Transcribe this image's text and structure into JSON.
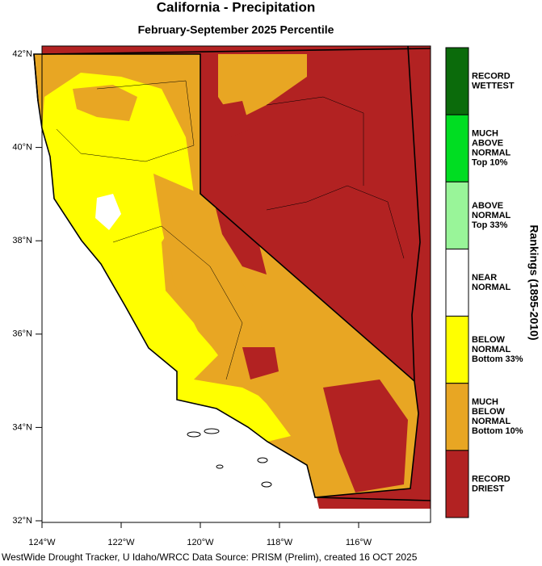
{
  "map": {
    "title": "California - Precipitation",
    "subtitle": "February-September 2025 Percentile",
    "lon_ticks": [
      {
        "value": -124,
        "label": "124°W"
      },
      {
        "value": -122,
        "label": "122°W"
      },
      {
        "value": -120,
        "label": "120°W"
      },
      {
        "value": -118,
        "label": "118°W"
      },
      {
        "value": -116,
        "label": "116°W"
      }
    ],
    "lat_ticks": [
      {
        "value": 42,
        "label": "42°N"
      },
      {
        "value": 40,
        "label": "40°N"
      },
      {
        "value": 38,
        "label": "38°N"
      },
      {
        "value": 36,
        "label": "36°N"
      },
      {
        "value": 34,
        "label": "34°N"
      },
      {
        "value": 32,
        "label": "32°N"
      }
    ],
    "legend": {
      "title": "Rankings (1895-2010)",
      "items": [
        {
          "color": "#0b6b0b",
          "lines": [
            "RECORD",
            "WETTEST"
          ]
        },
        {
          "color": "#00dd22",
          "lines": [
            "MUCH",
            "ABOVE",
            "NORMAL",
            "Top 10%"
          ]
        },
        {
          "color": "#99f599",
          "lines": [
            "ABOVE",
            "NORMAL",
            "Top 33%"
          ]
        },
        {
          "color": "#ffffff",
          "lines": [
            "NEAR",
            "NORMAL"
          ]
        },
        {
          "color": "#ffff00",
          "lines": [
            "BELOW",
            "NORMAL",
            "Bottom 33%"
          ]
        },
        {
          "color": "#e8a623",
          "lines": [
            "MUCH",
            "BELOW",
            "NORMAL",
            "Bottom 10%"
          ]
        },
        {
          "color": "#b22222",
          "lines": [
            "RECORD",
            "DRIEST"
          ]
        }
      ]
    },
    "footer": "WestWide Drought Tracker, U Idaho/WRCC Data Source: PRISM (Prelim), created 16 OCT 2025"
  }
}
